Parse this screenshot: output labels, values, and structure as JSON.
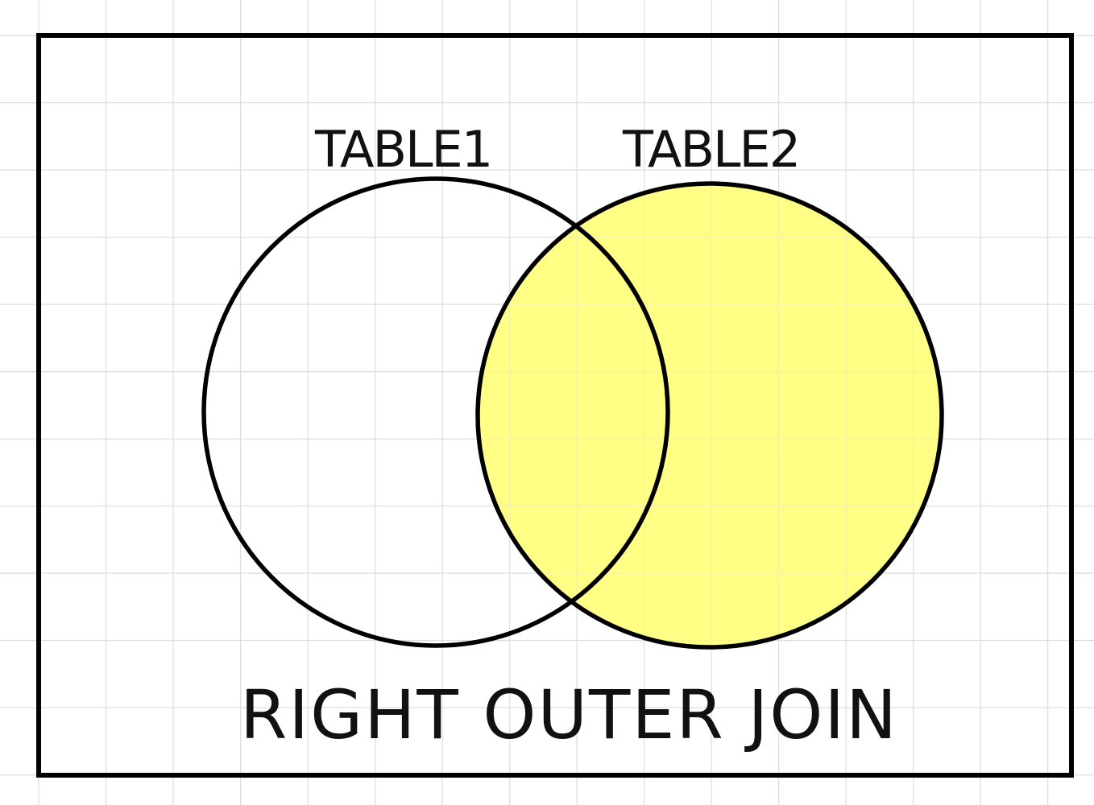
{
  "diagram": {
    "labels": {
      "left_set": "TABLE1",
      "right_set": "TABLE2",
      "title": "RIGHT OUTER JOIN"
    },
    "colors": {
      "background": "#ffffff",
      "grid": "#dedede",
      "outline": "#000000",
      "highlight": "#ffff80"
    },
    "highlighted_set": "TABLE2"
  }
}
